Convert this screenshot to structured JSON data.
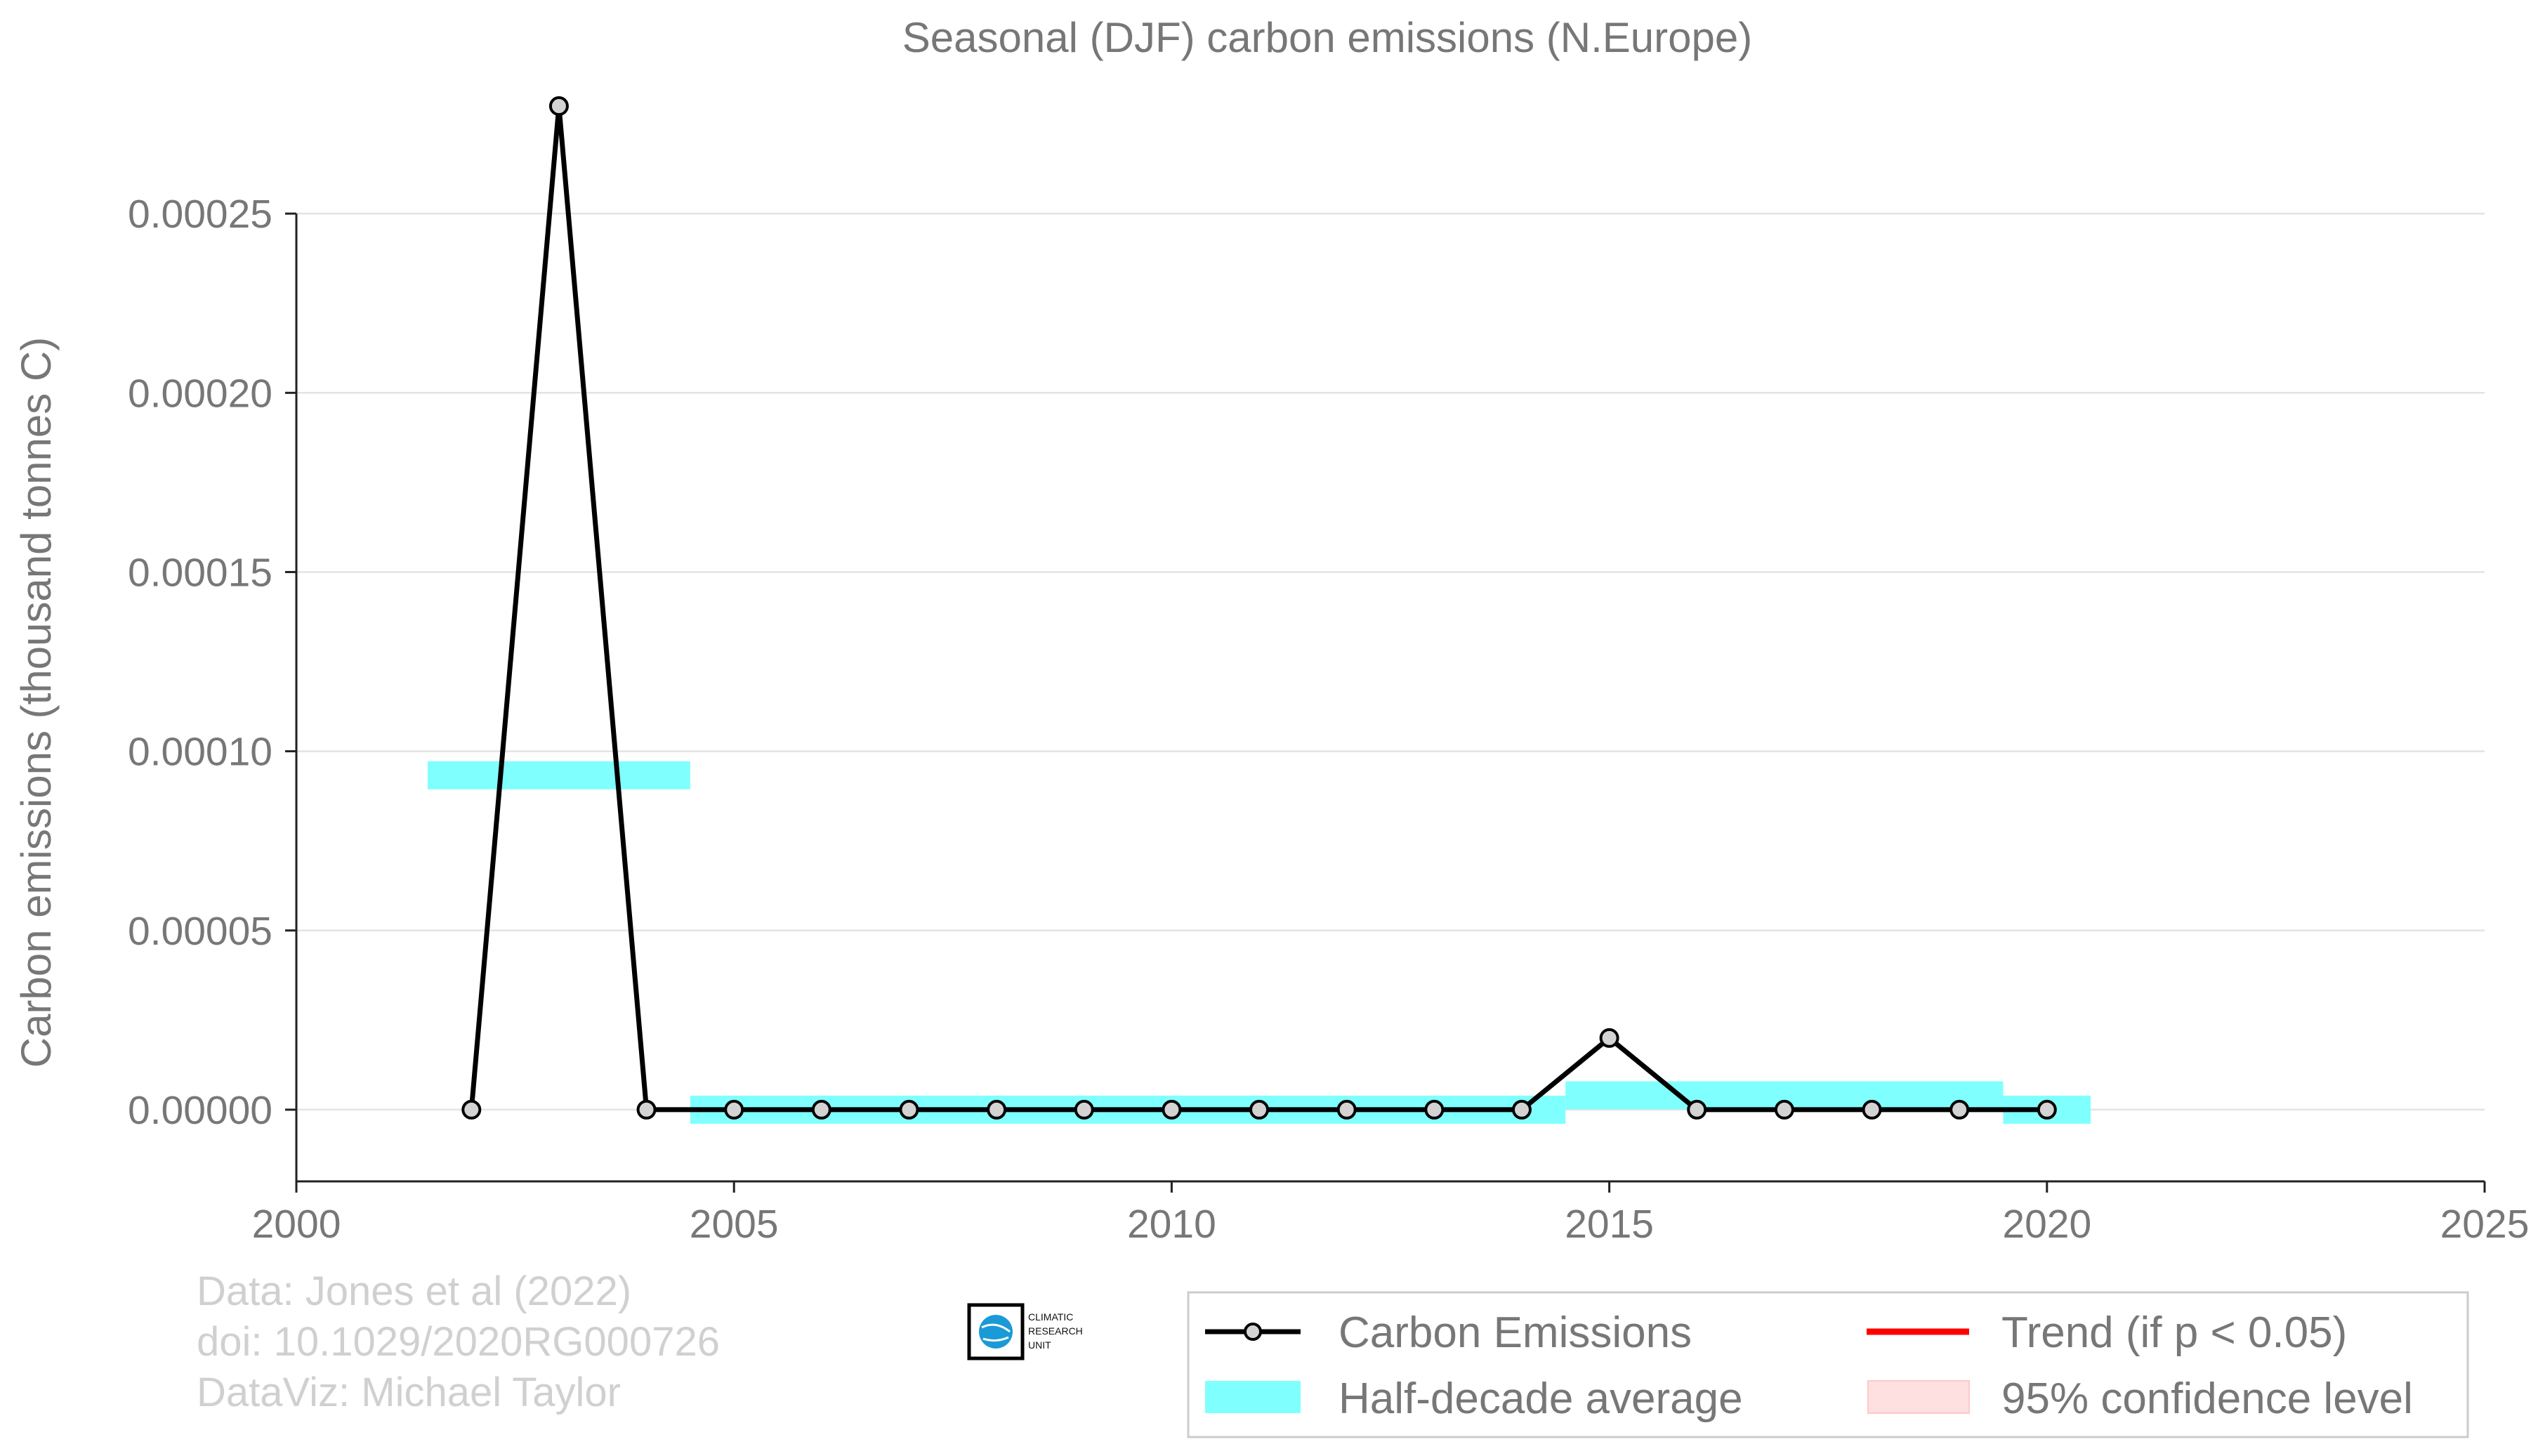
{
  "chart_data": {
    "type": "line",
    "title": "Seasonal (DJF) carbon emissions (N.Europe)",
    "xlabel": "",
    "ylabel": "Carbon emissions (thousand tonnes C)",
    "xlim": [
      2000,
      2025
    ],
    "ylim": [
      -2e-05,
      0.00029
    ],
    "x_ticks": [
      "2000",
      "2005",
      "2010",
      "2015",
      "2020",
      "2025"
    ],
    "y_ticks": [
      "0.00000",
      "0.00005",
      "0.00010",
      "0.00015",
      "0.00020",
      "0.00025"
    ],
    "grid": "horizontal",
    "series": [
      {
        "name": "Carbon Emissions",
        "color": "#000000",
        "marker_fill": "#d3d3d3",
        "x": [
          2002,
          2003,
          2004,
          2005,
          2006,
          2007,
          2008,
          2009,
          2010,
          2011,
          2012,
          2013,
          2014,
          2015,
          2016,
          2017,
          2018,
          2019,
          2020
        ],
        "y": [
          0,
          0.00028,
          0,
          0,
          0,
          0,
          0,
          0,
          0,
          0,
          0,
          0,
          0,
          2e-05,
          0,
          0,
          0,
          0,
          0
        ]
      }
    ],
    "half_decade_average": {
      "name": "Half-decade average",
      "color": "#00ffff",
      "segments": [
        {
          "x0": 2001.5,
          "x1": 2004.5,
          "y": 9.33e-05
        },
        {
          "x0": 2004.5,
          "x1": 2014.5,
          "y": 0
        },
        {
          "x0": 2014.5,
          "x1": 2019.5,
          "y": 4e-06
        },
        {
          "x0": 2019.5,
          "x1": 2020.5,
          "y": 0
        }
      ]
    },
    "legend": {
      "placement": "bottom-right",
      "entries": [
        {
          "label": "Carbon Emissions",
          "kind": "line-marker",
          "color": "#000000"
        },
        {
          "label": "Trend (if p < 0.05)",
          "kind": "line",
          "color": "#ff0000"
        },
        {
          "label": "Half-decade average",
          "kind": "patch",
          "color": "#80ffff"
        },
        {
          "label": "95% confidence level",
          "kind": "patch",
          "color": "#ffe0e0"
        }
      ]
    }
  },
  "credits": [
    "Data: Jones et al (2022)",
    "doi: 10.1029/2020RG000726",
    "DataViz: Michael Taylor"
  ],
  "logo": {
    "lines": [
      "CLIMATIC",
      "RESEARCH",
      "UNIT"
    ],
    "icon": "globe-icon",
    "colors": {
      "globe": "#1a9ad6",
      "frame": "#000000"
    }
  }
}
